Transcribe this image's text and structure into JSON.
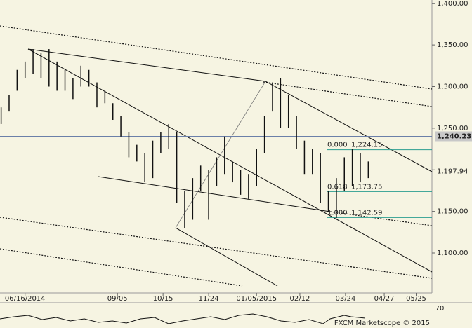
{
  "chart_data": {
    "type": "hilo",
    "footer": "FXCM Marketscope © 2015",
    "x": [
      "2014-05-26",
      "2014-06-02",
      "2014-06-09",
      "2014-06-16",
      "2014-06-23",
      "2014-06-30",
      "2014-07-07",
      "2014-07-14",
      "2014-07-21",
      "2014-07-28",
      "2014-08-04",
      "2014-08-11",
      "2014-08-18",
      "2014-08-25",
      "2014-09-01",
      "2014-09-08",
      "2014-09-15",
      "2014-09-22",
      "2014-09-29",
      "2014-10-06",
      "2014-10-13",
      "2014-10-20",
      "2014-10-27",
      "2014-11-03",
      "2014-11-10",
      "2014-11-17",
      "2014-11-24",
      "2014-12-01",
      "2014-12-08",
      "2014-12-15",
      "2014-12-22",
      "2014-12-29",
      "2015-01-05",
      "2015-01-12",
      "2015-01-19",
      "2015-01-26",
      "2015-02-02",
      "2015-02-09",
      "2015-02-16",
      "2015-02-23",
      "2015-03-02",
      "2015-03-09",
      "2015-03-16",
      "2015-03-23",
      "2015-03-30",
      "2015-04-06",
      "2015-04-13"
    ],
    "high": [
      1275,
      1290,
      1320,
      1330,
      1345,
      1340,
      1345,
      1330,
      1320,
      1310,
      1325,
      1320,
      1305,
      1295,
      1280,
      1265,
      1245,
      1230,
      1220,
      1235,
      1245,
      1255,
      1245,
      1175,
      1190,
      1205,
      1200,
      1215,
      1240,
      1210,
      1200,
      1195,
      1225,
      1265,
      1305,
      1310,
      1290,
      1265,
      1235,
      1225,
      1220,
      1175,
      1190,
      1215,
      1225,
      1220,
      1210
    ],
    "low": [
      1255,
      1270,
      1295,
      1310,
      1315,
      1310,
      1300,
      1295,
      1295,
      1285,
      1300,
      1300,
      1275,
      1280,
      1260,
      1240,
      1215,
      1210,
      1185,
      1190,
      1220,
      1225,
      1160,
      1130,
      1140,
      1175,
      1140,
      1180,
      1195,
      1185,
      1170,
      1165,
      1180,
      1220,
      1270,
      1250,
      1250,
      1225,
      1195,
      1195,
      1160,
      1150,
      1142,
      1175,
      1180,
      1185,
      1190
    ],
    "color": "#111111",
    "xlim": [
      "2014-05-25",
      "2015-06-06"
    ],
    "xticks": [
      {
        "value": "2014-06-16",
        "label": "06/16/2014"
      },
      {
        "value": "2014-09-05",
        "label": "09/05"
      },
      {
        "value": "2014-10-15",
        "label": "10/15"
      },
      {
        "value": "2014-11-24",
        "label": "11/24"
      },
      {
        "value": "2015-01-05",
        "label": "01/05/2015"
      },
      {
        "value": "2015-02-12",
        "label": "02/12"
      },
      {
        "value": "2015-03-24",
        "label": "03/24"
      },
      {
        "value": "2015-04-27",
        "label": "04/27"
      },
      {
        "value": "2015-05-25",
        "label": "05/25"
      }
    ],
    "ylim": [
      1052,
      1404
    ],
    "yticks": [
      {
        "value": 1100,
        "label": "1,100.00"
      },
      {
        "value": 1150,
        "label": "1,150.00"
      },
      {
        "value": 1200,
        "label": "1,200.00"
      },
      {
        "value": 1250,
        "label": "1,250.00"
      },
      {
        "value": 1300,
        "label": "1,300.00"
      },
      {
        "value": 1350,
        "label": "1,350.00"
      },
      {
        "value": 1400,
        "label": "1,400.00"
      }
    ],
    "horizontal_line": {
      "value": 1240.23,
      "label": "1,240.23"
    },
    "last_price": {
      "value": 1197.94,
      "label": "1,197.94"
    },
    "fibonacci": [
      {
        "level": "0.000",
        "value": 1224.15,
        "label": "1,224.15"
      },
      {
        "level": "0.618",
        "value": 1173.75,
        "label": "1,173.75"
      },
      {
        "level": "1.000",
        "value": 1142.59,
        "label": "1,142.59"
      }
    ],
    "indicator_ticks": [
      70
    ]
  }
}
